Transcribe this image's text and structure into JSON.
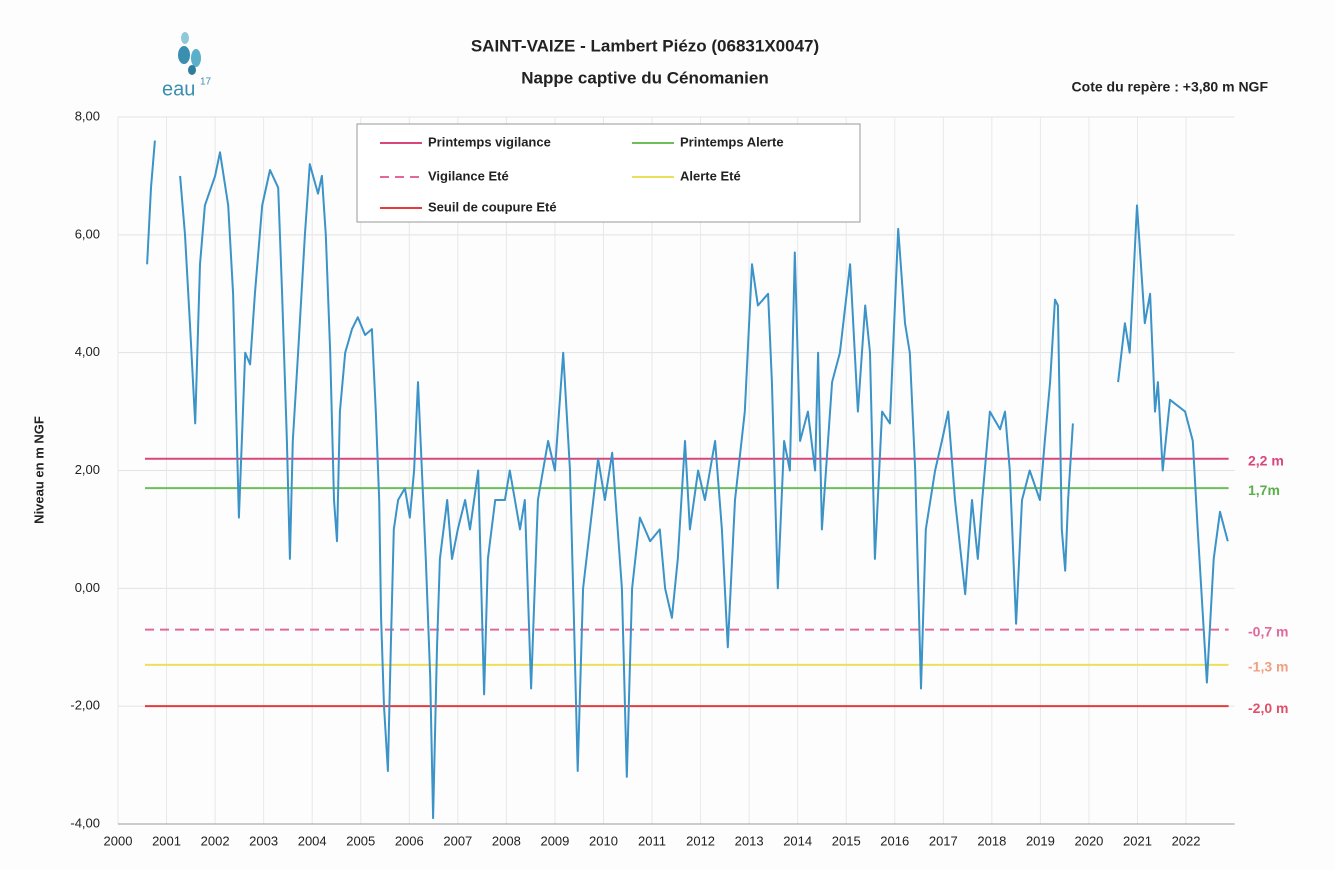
{
  "chart_data": {
    "type": "line",
    "title": "SAINT-VAIZE - Lambert Piézo (06831X0047)",
    "subtitle": "Nappe captive du Cénomanien",
    "logo": "eau",
    "logo_sup": "17",
    "annotation": "Cote du repère : +3,80 m NGF",
    "y_label": "Niveau en m NGF",
    "color": "#3b93c8",
    "grid": true,
    "xlim": [
      2000,
      2023
    ],
    "xticks": [
      2000,
      2001,
      2002,
      2003,
      2004,
      2005,
      2006,
      2007,
      2008,
      2009,
      2010,
      2011,
      2012,
      2013,
      2014,
      2015,
      2016,
      2017,
      2018,
      2019,
      2020,
      2021,
      2022
    ],
    "ylim": [
      -4,
      8
    ],
    "yticks": [
      {
        "value": -4,
        "label": "-4,00"
      },
      {
        "value": -2,
        "label": "-2,00"
      },
      {
        "value": 0,
        "label": "0,00"
      },
      {
        "value": 2,
        "label": "2,00"
      },
      {
        "value": 4,
        "label": "4,00"
      },
      {
        "value": 6,
        "label": "6,00"
      },
      {
        "value": 8,
        "label": "8,00"
      }
    ],
    "thresholds": [
      {
        "name": "Printemps vigilance",
        "value": 2.2,
        "label": "2,2 m",
        "color": "#d9467c",
        "dash": false,
        "label_color": "#d9467c"
      },
      {
        "name": "Printemps Alerte",
        "value": 1.7,
        "label": "1,7m",
        "color": "#6cbf5a",
        "dash": false,
        "label_color": "#5aaf4a"
      },
      {
        "name": "Vigilance Eté",
        "value": -0.7,
        "label": "-0,7  m",
        "color": "#e0689a",
        "dash": true,
        "label_color": "#e0689a"
      },
      {
        "name": "Alerte Eté",
        "value": -1.3,
        "label": "-1,3 m",
        "color": "#ece05a",
        "dash": false,
        "label_color": "#f0a080"
      },
      {
        "name": "Seuil de coupure Eté",
        "value": -2.0,
        "label": "-2,0 m",
        "color": "#e53b3b",
        "dash": false,
        "label_color": "#e0506a"
      }
    ],
    "x": [
      2000.6,
      2000.68,
      2000.76,
      2001.0,
      2001.28,
      2001.38,
      2001.48,
      2001.59,
      2001.69,
      2001.79,
      2002.0,
      2002.1,
      2002.27,
      2002.37,
      2002.49,
      2002.62,
      2002.72,
      2002.82,
      2002.97,
      2003.13,
      2003.3,
      2003.38,
      2003.48,
      2003.54,
      2003.6,
      2003.71,
      2003.85,
      2003.95,
      2004.12,
      2004.2,
      2004.28,
      2004.37,
      2004.45,
      2004.51,
      2004.57,
      2004.68,
      2004.82,
      2004.94,
      2005.09,
      2005.23,
      2005.31,
      2005.38,
      2005.42,
      2005.48,
      2005.56,
      2005.62,
      2005.68,
      2005.77,
      2005.91,
      2006.01,
      2006.1,
      2006.18,
      2006.26,
      2006.34,
      2006.43,
      2006.49,
      2006.57,
      2006.63,
      2006.78,
      2006.88,
      2007.0,
      2007.15,
      2007.25,
      2007.42,
      2007.54,
      2007.62,
      2007.77,
      2007.97,
      2008.07,
      2008.28,
      2008.38,
      2008.51,
      2008.65,
      2008.86,
      2009.0,
      2009.17,
      2009.31,
      2009.39,
      2009.47,
      2009.58,
      2009.72,
      2009.89,
      2010.03,
      2010.18,
      2010.38,
      2010.48,
      2010.59,
      2010.75,
      2010.96,
      2011.16,
      2011.27,
      2011.41,
      2011.53,
      2011.68,
      2011.78,
      2011.95,
      2012.09,
      2012.3,
      2012.44,
      2012.56,
      2012.71,
      2012.91,
      2013.06,
      2013.18,
      2013.39,
      2013.47,
      2013.59,
      2013.72,
      2013.84,
      2013.94,
      2014.05,
      2014.21,
      2014.36,
      2014.42,
      2014.5,
      2014.71,
      2014.87,
      2015.08,
      2015.24,
      2015.39,
      2015.49,
      2015.59,
      2015.74,
      2015.9,
      2016.07,
      2016.21,
      2016.31,
      2016.42,
      2016.54,
      2016.64,
      2016.83,
      2016.97,
      2017.1,
      2017.24,
      2017.45,
      2017.59,
      2017.71,
      2017.8,
      2017.96,
      2018.17,
      2018.27,
      2018.37,
      2018.5,
      2018.62,
      2018.78,
      2018.99,
      2019.09,
      2019.2,
      2019.3,
      2019.36,
      2019.44,
      2019.51,
      2019.57,
      2019.67,
      2020.0,
      2020.6,
      2020.74,
      2020.84,
      2020.99,
      2021.15,
      2021.26,
      2021.36,
      2021.42,
      2021.52,
      2021.67,
      2021.98,
      2022.14,
      2022.24,
      2022.43,
      2022.57,
      2022.7,
      2022.86
    ],
    "values": [
      5.5,
      6.8,
      7.6,
      null,
      7.0,
      6.0,
      4.5,
      2.8,
      5.5,
      6.5,
      7.0,
      7.4,
      6.5,
      5.0,
      1.2,
      4.0,
      3.8,
      5.0,
      6.5,
      7.1,
      6.8,
      5.0,
      2.5,
      0.5,
      2.5,
      4.0,
      6.0,
      7.2,
      6.7,
      7.0,
      6.0,
      4.0,
      1.5,
      0.8,
      3.0,
      4.0,
      4.4,
      4.6,
      4.3,
      4.4,
      3.0,
      1.5,
      -0.5,
      -2.0,
      -3.1,
      -1.0,
      1.0,
      1.5,
      1.7,
      1.2,
      2.0,
      3.5,
      2.0,
      0.5,
      -1.5,
      -3.9,
      -1.0,
      0.5,
      1.5,
      0.5,
      1.0,
      1.5,
      1.0,
      2.0,
      -1.8,
      0.5,
      1.5,
      1.5,
      2.0,
      1.0,
      1.5,
      -1.7,
      1.5,
      2.5,
      2.0,
      4.0,
      2.0,
      -0.5,
      -3.1,
      0.0,
      1.0,
      2.2,
      1.5,
      2.3,
      0.0,
      -3.2,
      0.0,
      1.2,
      0.8,
      1.0,
      0.0,
      -0.5,
      0.5,
      2.5,
      1.0,
      2.0,
      1.5,
      2.5,
      1.0,
      -1.0,
      1.5,
      3.0,
      5.5,
      4.8,
      5.0,
      3.5,
      0.0,
      2.5,
      2.0,
      5.7,
      2.5,
      3.0,
      2.0,
      4.0,
      1.0,
      3.5,
      4.0,
      5.5,
      3.0,
      4.8,
      4.0,
      0.5,
      3.0,
      2.8,
      6.1,
      4.5,
      4.0,
      2.0,
      -1.7,
      1.0,
      2.0,
      2.5,
      3.0,
      1.5,
      -0.1,
      1.5,
      0.5,
      1.5,
      3.0,
      2.7,
      3.0,
      2.0,
      -0.6,
      1.5,
      2.0,
      1.5,
      2.5,
      3.5,
      4.9,
      4.8,
      1.0,
      0.3,
      1.5,
      2.8,
      null,
      3.5,
      4.5,
      4.0,
      6.5,
      4.5,
      5.0,
      3.0,
      3.5,
      2.0,
      3.2,
      3.0,
      2.5,
      1.0,
      -1.6,
      0.5,
      1.3,
      0.8
    ]
  }
}
